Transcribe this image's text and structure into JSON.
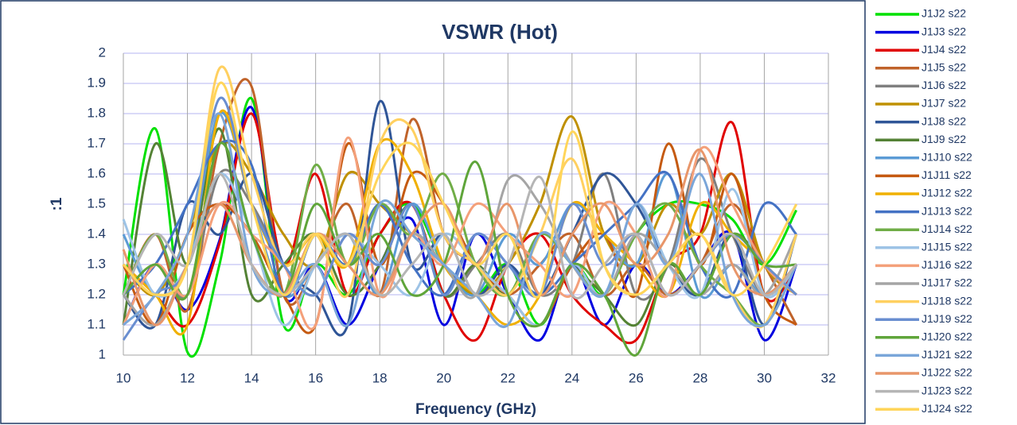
{
  "chart_data": {
    "type": "line",
    "title": "VSWR (Hot)",
    "x_label": "Frequency (GHz)",
    "y_label": ":1",
    "x": [
      10,
      11,
      12,
      13,
      14,
      15,
      16,
      17,
      18,
      19,
      20,
      21,
      22,
      23,
      24,
      25,
      26,
      27,
      28,
      29,
      30,
      31
    ],
    "xlim": [
      10,
      32
    ],
    "xticks": [
      10,
      12,
      14,
      16,
      18,
      20,
      22,
      24,
      26,
      28,
      30,
      32
    ],
    "ylim": [
      1,
      2
    ],
    "yticks": [
      1,
      1.1,
      1.2,
      1.3,
      1.4,
      1.5,
      1.6,
      1.7,
      1.8,
      1.9,
      2
    ],
    "grid": true,
    "legend": "right",
    "series": [
      {
        "name": "J1J2 s22",
        "color": "#00e000",
        "values": [
          1.2,
          1.75,
          1.01,
          1.3,
          1.85,
          1.1,
          1.3,
          1.2,
          1.4,
          1.5,
          1.3,
          1.2,
          1.3,
          1.1,
          1.3,
          1.2,
          1.4,
          1.5,
          1.5,
          1.45,
          1.3,
          1.48
        ]
      },
      {
        "name": "J1J3 s22",
        "color": "#0000e0",
        "values": [
          1.1,
          1.3,
          1.15,
          1.38,
          1.82,
          1.2,
          1.3,
          1.1,
          1.3,
          1.45,
          1.1,
          1.4,
          1.2,
          1.05,
          1.3,
          1.1,
          1.3,
          1.2,
          1.3,
          1.4,
          1.05,
          1.3
        ]
      },
      {
        "name": "J1J4 s22",
        "color": "#e00000",
        "values": [
          1.3,
          1.2,
          1.1,
          1.37,
          1.8,
          1.3,
          1.6,
          1.2,
          1.4,
          1.5,
          1.2,
          1.05,
          1.3,
          1.4,
          1.2,
          1.1,
          1.05,
          1.3,
          1.4,
          1.77,
          1.2,
          1.3
        ]
      },
      {
        "name": "J1J5 s22",
        "color": "#c0632a",
        "values": [
          1.2,
          1.4,
          1.15,
          1.7,
          1.89,
          1.2,
          1.3,
          1.5,
          1.2,
          1.78,
          1.4,
          1.3,
          1.2,
          1.3,
          1.4,
          1.2,
          1.3,
          1.2,
          1.3,
          1.5,
          1.3,
          1.1
        ]
      },
      {
        "name": "J1J6 s22",
        "color": "#7f7f7f",
        "values": [
          1.1,
          1.3,
          1.2,
          1.6,
          1.5,
          1.3,
          1.2,
          1.4,
          1.3,
          1.5,
          1.2,
          1.3,
          1.4,
          1.2,
          1.3,
          1.6,
          1.2,
          1.3,
          1.65,
          1.4,
          1.2,
          1.3
        ]
      },
      {
        "name": "J1J7 s22",
        "color": "#bf9000",
        "values": [
          1.3,
          1.2,
          1.4,
          1.7,
          1.6,
          1.4,
          1.3,
          1.6,
          1.5,
          1.4,
          1.3,
          1.2,
          1.3,
          1.5,
          1.79,
          1.4,
          1.3,
          1.5,
          1.4,
          1.6,
          1.3,
          1.2
        ]
      },
      {
        "name": "J1J8 s22",
        "color": "#2f5597",
        "values": [
          1.2,
          1.1,
          1.5,
          1.4,
          1.6,
          1.3,
          1.2,
          1.1,
          1.84,
          1.3,
          1.4,
          1.2,
          1.3,
          1.2,
          1.4,
          1.6,
          1.5,
          1.3,
          1.2,
          1.4,
          1.1,
          1.4
        ]
      },
      {
        "name": "J1J9 s22",
        "color": "#548235",
        "values": [
          1.1,
          1.7,
          1.3,
          1.75,
          1.2,
          1.3,
          1.4,
          1.2,
          1.3,
          1.5,
          1.2,
          1.3,
          1.2,
          1.4,
          1.3,
          1.2,
          1.1,
          1.3,
          1.2,
          1.4,
          1.3,
          1.2
        ]
      },
      {
        "name": "J1J10 s22",
        "color": "#5b9bd5",
        "values": [
          1.4,
          1.2,
          1.3,
          1.8,
          1.5,
          1.2,
          1.3,
          1.4,
          1.2,
          1.5,
          1.3,
          1.2,
          1.4,
          1.3,
          1.5,
          1.4,
          1.3,
          1.6,
          1.2,
          1.3,
          1.2,
          1.3
        ]
      },
      {
        "name": "J1J11 s22",
        "color": "#c55a11",
        "values": [
          1.3,
          1.1,
          1.4,
          1.5,
          1.4,
          1.2,
          1.1,
          1.7,
          1.3,
          1.6,
          1.5,
          1.3,
          1.2,
          1.1,
          1.3,
          1.4,
          1.2,
          1.7,
          1.3,
          1.6,
          1.2,
          1.1
        ]
      },
      {
        "name": "J1J12 s22",
        "color": "#f0b000",
        "values": [
          1.3,
          1.2,
          1.1,
          1.8,
          1.5,
          1.3,
          1.4,
          1.3,
          1.7,
          1.6,
          1.3,
          1.2,
          1.1,
          1.2,
          1.5,
          1.4,
          1.3,
          1.2,
          1.5,
          1.4,
          1.3,
          1.2
        ]
      },
      {
        "name": "J1J13 s22",
        "color": "#4472c4",
        "values": [
          1.2,
          1.3,
          1.5,
          1.7,
          1.63,
          1.2,
          1.4,
          1.3,
          1.5,
          1.3,
          1.2,
          1.4,
          1.3,
          1.2,
          1.3,
          1.4,
          1.5,
          1.6,
          1.3,
          1.2,
          1.5,
          1.4
        ]
      },
      {
        "name": "J1J14 s22",
        "color": "#70ad47",
        "values": [
          1.2,
          1.4,
          1.2,
          1.7,
          1.4,
          1.2,
          1.63,
          1.3,
          1.5,
          1.4,
          1.6,
          1.3,
          1.2,
          1.4,
          1.3,
          1.2,
          1.4,
          1.5,
          1.3,
          1.2,
          1.1,
          1.3
        ]
      },
      {
        "name": "J1J15 s22",
        "color": "#9dc3e6",
        "values": [
          1.45,
          1.2,
          1.3,
          1.6,
          1.4,
          1.1,
          1.3,
          1.4,
          1.3,
          1.2,
          1.4,
          1.3,
          1.2,
          1.1,
          1.3,
          1.2,
          1.5,
          1.3,
          1.2,
          1.55,
          1.2,
          1.3
        ]
      },
      {
        "name": "J1J16 s22",
        "color": "#f4a07a",
        "values": [
          1.1,
          1.3,
          1.2,
          1.5,
          1.4,
          1.3,
          1.1,
          1.72,
          1.2,
          1.4,
          1.3,
          1.5,
          1.4,
          1.3,
          1.2,
          1.5,
          1.4,
          1.2,
          1.68,
          1.5,
          1.3,
          1.2
        ]
      },
      {
        "name": "J1J17 s22",
        "color": "#a5a5a5",
        "values": [
          1.2,
          1.1,
          1.3,
          1.5,
          1.3,
          1.2,
          1.4,
          1.3,
          1.2,
          1.4,
          1.3,
          1.2,
          1.58,
          1.5,
          1.3,
          1.2,
          1.4,
          1.3,
          1.2,
          1.3,
          1.2,
          1.4
        ]
      },
      {
        "name": "J1J18 s22",
        "color": "#ffd060",
        "values": [
          1.3,
          1.2,
          1.3,
          1.95,
          1.6,
          1.3,
          1.4,
          1.2,
          1.7,
          1.75,
          1.4,
          1.3,
          1.2,
          1.4,
          1.65,
          1.3,
          1.2,
          1.3,
          1.4,
          1.2,
          1.1,
          1.4
        ]
      },
      {
        "name": "J1J19 s22",
        "color": "#698ed0",
        "values": [
          1.05,
          1.2,
          1.3,
          1.85,
          1.5,
          1.3,
          1.2,
          1.4,
          1.3,
          1.5,
          1.2,
          1.4,
          1.3,
          1.2,
          1.5,
          1.3,
          1.4,
          1.2,
          1.3,
          1.4,
          1.3,
          1.2
        ]
      },
      {
        "name": "J1J20 s22",
        "color": "#5fa53a",
        "values": [
          1.2,
          1.3,
          1.2,
          1.7,
          1.4,
          1.2,
          1.5,
          1.3,
          1.4,
          1.2,
          1.3,
          1.64,
          1.2,
          1.1,
          1.3,
          1.2,
          1.0,
          1.3,
          1.2,
          1.4,
          1.3,
          1.3
        ]
      },
      {
        "name": "J1J21 s22",
        "color": "#7aa6d9",
        "values": [
          1.1,
          1.2,
          1.4,
          1.8,
          1.3,
          1.2,
          1.3,
          1.1,
          1.5,
          1.4,
          1.3,
          1.2,
          1.1,
          1.4,
          1.3,
          1.2,
          1.5,
          1.3,
          1.6,
          1.2,
          1.1,
          1.3
        ]
      },
      {
        "name": "J1J22 s22",
        "color": "#e8966a",
        "values": [
          1.35,
          1.1,
          1.3,
          1.5,
          1.3,
          1.2,
          1.4,
          1.3,
          1.2,
          1.4,
          1.5,
          1.3,
          1.5,
          1.2,
          1.4,
          1.5,
          1.3,
          1.4,
          1.68,
          1.3,
          1.2,
          1.3
        ]
      },
      {
        "name": "J1J23 s22",
        "color": "#b5b5b5",
        "values": [
          1.2,
          1.4,
          1.3,
          1.6,
          1.3,
          1.2,
          1.3,
          1.4,
          1.2,
          1.3,
          1.4,
          1.2,
          1.3,
          1.59,
          1.2,
          1.3,
          1.4,
          1.2,
          1.3,
          1.4,
          1.2,
          1.3
        ]
      },
      {
        "name": "J1J24 s22",
        "color": "#ffd55a",
        "values": [
          1.3,
          1.2,
          1.3,
          1.9,
          1.5,
          1.2,
          1.4,
          1.3,
          1.6,
          1.7,
          1.5,
          1.3,
          1.4,
          1.2,
          1.74,
          1.3,
          1.2,
          1.3,
          1.4,
          1.2,
          1.3,
          1.5
        ]
      }
    ]
  }
}
